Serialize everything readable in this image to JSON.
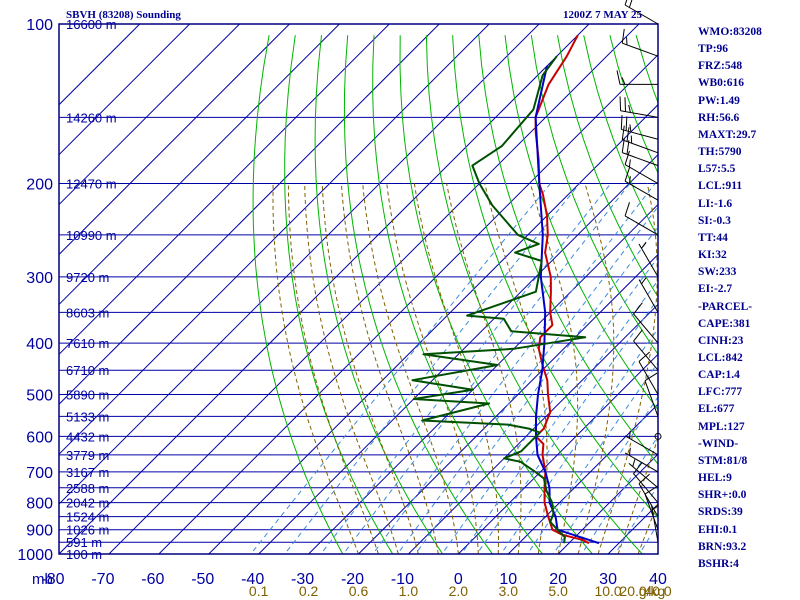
{
  "header": {
    "station": "SBVH (83208) Sounding",
    "time": "1200Z  7 MAY 25"
  },
  "indices": [
    "WMO:83208",
    "TP:96",
    "FRZ:548",
    "WB0:616",
    "PW:1.49",
    "RH:56.6",
    "MAXT:29.7",
    "TH:5790",
    "L57:5.5",
    "LCL:911",
    "LI:-1.6",
    "SI:-0.3",
    "TT:44",
    "KI:32",
    "SW:233",
    "EI:-2.7",
    "-PARCEL-",
    "CAPE:381",
    "CINH:23",
    "LCL:842",
    "CAP:1.4",
    "LFC:777",
    "EL:677",
    "MPL:127",
    "-WIND-",
    "STM:81/8",
    "HEL:9",
    "SHR+:0.0",
    "SRDS:39",
    "EHI:0.1",
    "BRN:93.2",
    "BSHR:4"
  ],
  "chart_data": {
    "type": "line",
    "chart_kind": "skew-T log-P sounding",
    "y_scale": "log",
    "y_axis": {
      "ticks": [
        100,
        200,
        300,
        400,
        500,
        600,
        700,
        800,
        900,
        1000
      ],
      "range": [
        100,
        1000
      ]
    },
    "x_axis": {
      "ticks": [
        -80,
        -70,
        -60,
        -50,
        -40,
        -30,
        -20,
        -10,
        0,
        10,
        20,
        30,
        40
      ],
      "range": [
        -80,
        40
      ]
    },
    "y_corner_label": "mb",
    "height_labels": [
      {
        "p": 100,
        "label": "16600 m"
      },
      {
        "p": 150,
        "label": "14260 m"
      },
      {
        "p": 200,
        "label": "12470 m"
      },
      {
        "p": 250,
        "label": "10990 m"
      },
      {
        "p": 300,
        "label": "9720 m"
      },
      {
        "p": 350,
        "label": "8603 m"
      },
      {
        "p": 400,
        "label": "7610 m"
      },
      {
        "p": 450,
        "label": "6710 m"
      },
      {
        "p": 500,
        "label": "5890 m"
      },
      {
        "p": 550,
        "label": "5133 m"
      },
      {
        "p": 600,
        "label": "4432 m"
      },
      {
        "p": 650,
        "label": "3779 m"
      },
      {
        "p": 700,
        "label": "3167 m"
      },
      {
        "p": 750,
        "label": "2588 m"
      },
      {
        "p": 800,
        "label": "2042 m"
      },
      {
        "p": 850,
        "label": "1524 m"
      },
      {
        "p": 900,
        "label": "1026 m"
      },
      {
        "p": 950,
        "label": "591 m"
      },
      {
        "p": 1000,
        "label": "100 m"
      }
    ],
    "mixing_ratio_labels": [
      "0.1",
      "0.2",
      "0.6",
      "1.0",
      "2.0",
      "3.0",
      "5.0",
      "10.0",
      "20.0",
      "40.0"
    ],
    "mixing_ratio_unit": "g/kg",
    "mixing_ratio_label_positions": [
      -40,
      -30,
      -20,
      -10,
      0,
      10,
      20,
      30,
      35,
      40
    ],
    "series": [
      {
        "role": "temperature",
        "color": "#c80000",
        "points": [
          [
            954,
            24
          ],
          [
            940,
            22
          ],
          [
            920,
            17
          ],
          [
            900,
            14
          ],
          [
            850,
            10.5
          ],
          [
            800,
            7
          ],
          [
            750,
            4
          ],
          [
            700,
            1
          ],
          [
            650,
            -3
          ],
          [
            620,
            -5
          ],
          [
            600,
            -8
          ],
          [
            580,
            -8
          ],
          [
            560,
            -9
          ],
          [
            540,
            -10
          ],
          [
            500,
            -14
          ],
          [
            470,
            -17
          ],
          [
            440,
            -21
          ],
          [
            410,
            -25
          ],
          [
            390,
            -27
          ],
          [
            370,
            -27
          ],
          [
            350,
            -30
          ],
          [
            320,
            -34
          ],
          [
            300,
            -37
          ],
          [
            270,
            -43
          ],
          [
            250,
            -46
          ],
          [
            230,
            -50
          ],
          [
            210,
            -55
          ],
          [
            200,
            -58
          ],
          [
            180,
            -63
          ],
          [
            160,
            -69
          ],
          [
            150,
            -72
          ],
          [
            130,
            -76
          ],
          [
            115,
            -78
          ],
          [
            105,
            -80
          ]
        ]
      },
      {
        "role": "parcel",
        "color": "#0000c8",
        "points": [
          [
            954,
            26
          ],
          [
            900,
            15
          ],
          [
            850,
            12
          ],
          [
            800,
            8
          ],
          [
            750,
            5
          ],
          [
            700,
            1
          ],
          [
            650,
            -4
          ],
          [
            600,
            -8
          ],
          [
            550,
            -12
          ],
          [
            500,
            -16
          ],
          [
            450,
            -20
          ],
          [
            400,
            -25
          ],
          [
            350,
            -31
          ],
          [
            300,
            -39
          ],
          [
            250,
            -47
          ],
          [
            200,
            -58
          ],
          [
            150,
            -72
          ],
          [
            120,
            -80
          ]
        ]
      },
      {
        "role": "dewpoint",
        "color": "#005000",
        "points": [
          [
            954,
            19
          ],
          [
            930,
            18
          ],
          [
            900,
            15
          ],
          [
            870,
            12
          ],
          [
            840,
            11
          ],
          [
            800,
            8.5
          ],
          [
            760,
            5
          ],
          [
            720,
            2
          ],
          [
            700,
            -1
          ],
          [
            670,
            -6
          ],
          [
            660,
            -10
          ],
          [
            640,
            -8
          ],
          [
            610,
            -8
          ],
          [
            590,
            -8
          ],
          [
            580,
            -11
          ],
          [
            570,
            -16
          ],
          [
            560,
            -34
          ],
          [
            520,
            -24
          ],
          [
            510,
            -40
          ],
          [
            490,
            -30
          ],
          [
            470,
            -44
          ],
          [
            440,
            -30
          ],
          [
            420,
            -47
          ],
          [
            410,
            -30
          ],
          [
            390,
            -18
          ],
          [
            380,
            -34
          ],
          [
            360,
            -38
          ],
          [
            355,
            -46
          ],
          [
            320,
            -37
          ],
          [
            280,
            -42
          ],
          [
            270,
            -49
          ],
          [
            260,
            -46
          ],
          [
            250,
            -52
          ],
          [
            220,
            -63
          ],
          [
            200,
            -70
          ],
          [
            185,
            -75
          ],
          [
            170,
            -73
          ],
          [
            145,
            -74
          ],
          [
            125,
            -79
          ],
          [
            115,
            -80
          ]
        ]
      }
    ],
    "wind_barbs": [
      {
        "p": 100,
        "dir": 300,
        "spd": 20
      },
      {
        "p": 115,
        "dir": 290,
        "spd": 15
      },
      {
        "p": 130,
        "dir": 270,
        "spd": 15
      },
      {
        "p": 150,
        "dir": 280,
        "spd": 25
      },
      {
        "p": 165,
        "dir": 285,
        "spd": 25
      },
      {
        "p": 175,
        "dir": 290,
        "spd": 25
      },
      {
        "p": 185,
        "dir": 290,
        "spd": 20
      },
      {
        "p": 200,
        "dir": 300,
        "spd": 15
      },
      {
        "p": 215,
        "dir": 300,
        "spd": 15
      },
      {
        "p": 250,
        "dir": 300,
        "spd": 10
      },
      {
        "p": 300,
        "dir": 330,
        "spd": 5
      },
      {
        "p": 350,
        "dir": 330,
        "spd": 5
      },
      {
        "p": 400,
        "dir": 320,
        "spd": 10
      },
      {
        "p": 450,
        "dir": 320,
        "spd": 10
      },
      {
        "p": 500,
        "dir": 330,
        "spd": 10
      },
      {
        "p": 550,
        "dir": 340,
        "spd": 10
      },
      {
        "p": 600,
        "dir": 0,
        "spd": 0
      },
      {
        "p": 650,
        "dir": 300,
        "spd": 5
      },
      {
        "p": 700,
        "dir": 300,
        "spd": 5
      },
      {
        "p": 750,
        "dir": 310,
        "spd": 5
      },
      {
        "p": 800,
        "dir": 320,
        "spd": 10
      },
      {
        "p": 850,
        "dir": 330,
        "spd": 10
      },
      {
        "p": 900,
        "dir": 340,
        "spd": 10
      },
      {
        "p": 950,
        "dir": 350,
        "spd": 5
      }
    ],
    "colors": {
      "frame": "#000080",
      "grid": "#0000a8",
      "dry_adiabat": "#00b400",
      "moist_adiabat": "#806000",
      "mixing_ratio": "#3c8cdc",
      "axis_label": "#0000a0",
      "mixing_label": "#806000"
    }
  }
}
